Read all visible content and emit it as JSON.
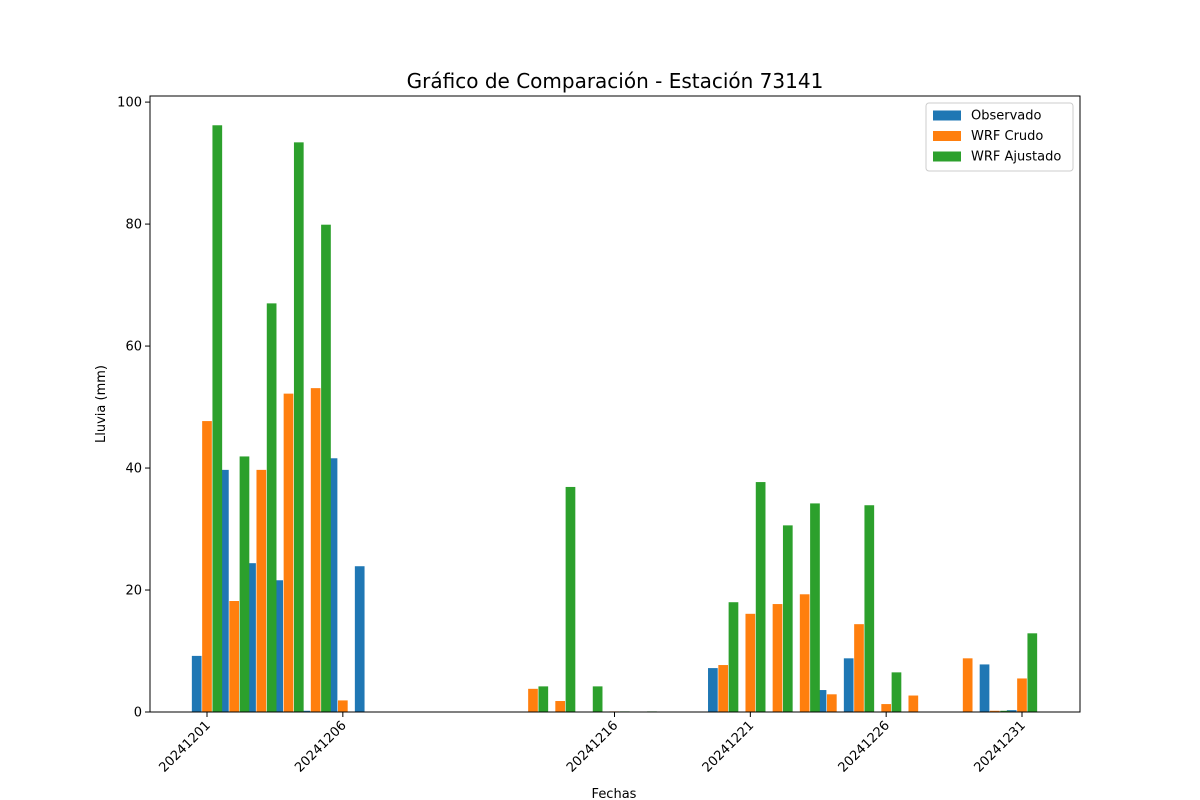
{
  "chart_data": {
    "type": "bar",
    "title": "Gráfico de Comparación - Estación 73141",
    "xlabel": "Fechas",
    "ylabel": "Lluvia (mm)",
    "ylim": [
      0,
      101
    ],
    "yticks": [
      0,
      20,
      40,
      60,
      80,
      100
    ],
    "xticks": [
      "20241201",
      "20241206",
      "20241216",
      "20241221",
      "20241226",
      "20241231"
    ],
    "categories": [
      "20241201",
      "20241202",
      "20241203",
      "20241204",
      "20241205",
      "20241206",
      "20241207",
      "20241213",
      "20241214",
      "20241215",
      "20241216",
      "20241217",
      "20241220",
      "20241221",
      "20241222",
      "20241223",
      "20241224",
      "20241225",
      "20241226",
      "20241227",
      "20241229",
      "20241230",
      "20241231"
    ],
    "series": [
      {
        "name": "Observado",
        "color": "#1f77b4",
        "values": [
          9.2,
          39.7,
          24.4,
          21.6,
          0.2,
          41.6,
          23.9,
          0,
          0,
          0,
          0,
          0,
          7.2,
          0,
          0,
          0,
          3.6,
          8.8,
          0,
          0,
          0,
          7.8,
          0.3
        ]
      },
      {
        "name": "WRF Crudo",
        "color": "#ff7f0e",
        "values": [
          47.7,
          18.2,
          39.7,
          52.2,
          53.1,
          1.9,
          0,
          3.8,
          1.8,
          0,
          0.1,
          0,
          7.7,
          16.1,
          17.7,
          19.3,
          2.9,
          14.4,
          1.3,
          2.7,
          8.8,
          0.2,
          5.5
        ]
      },
      {
        "name": "WRF Ajustado",
        "color": "#2ca02c",
        "values": [
          96.2,
          41.9,
          67.0,
          93.4,
          79.9,
          0,
          0,
          4.2,
          36.9,
          4.2,
          0.1,
          0.1,
          18.0,
          37.7,
          30.6,
          34.2,
          0,
          33.9,
          6.5,
          0,
          0,
          0.2,
          12.9
        ]
      }
    ],
    "grid": false,
    "legend": "top-right"
  }
}
